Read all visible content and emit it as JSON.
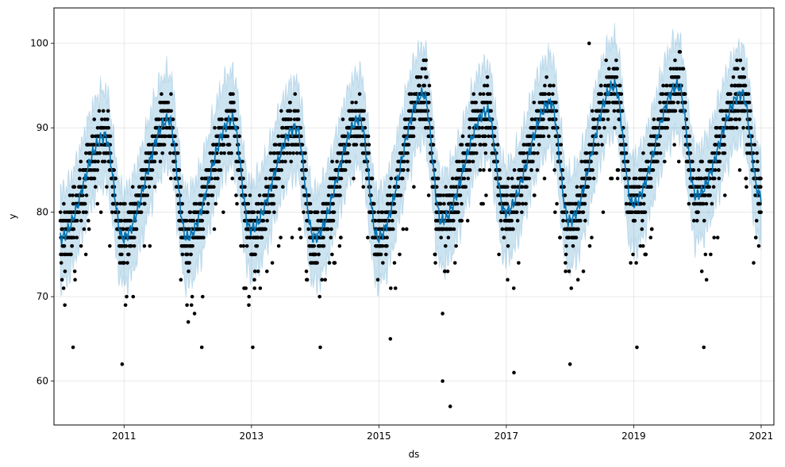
{
  "chart_data": {
    "type": "scatter",
    "title": "",
    "xlabel": "ds",
    "ylabel": "y",
    "xlim": [
      2009.9,
      2021.2
    ],
    "ylim": [
      54.8,
      104.2
    ],
    "grid": true,
    "x_ticks": [
      {
        "value": 2011,
        "label": "2011"
      },
      {
        "value": 2013,
        "label": "2013"
      },
      {
        "value": 2015,
        "label": "2015"
      },
      {
        "value": 2017,
        "label": "2017"
      },
      {
        "value": 2019,
        "label": "2019"
      },
      {
        "value": 2021,
        "label": "2021"
      }
    ],
    "y_ticks": [
      {
        "value": 60,
        "label": "60"
      },
      {
        "value": 70,
        "label": "70"
      },
      {
        "value": 80,
        "label": "80"
      },
      {
        "value": 90,
        "label": "90"
      },
      {
        "value": 100,
        "label": "100"
      }
    ],
    "observed": {
      "color": "#000000",
      "x_range": [
        2010.0,
        2021.0
      ],
      "annual_cycle": [
        {
          "year": 2010,
          "min": 77,
          "max": 89
        },
        {
          "year": 2011,
          "min": 77,
          "max": 91
        },
        {
          "year": 2012,
          "min": 78,
          "max": 91
        },
        {
          "year": 2013,
          "min": 77,
          "max": 90
        },
        {
          "year": 2014,
          "min": 77,
          "max": 91
        },
        {
          "year": 2015,
          "min": 79,
          "max": 94
        },
        {
          "year": 2016,
          "min": 80,
          "max": 92
        },
        {
          "year": 2017,
          "min": 79,
          "max": 93
        },
        {
          "year": 2018,
          "min": 81,
          "max": 95
        },
        {
          "year": 2019,
          "min": 82,
          "max": 95
        },
        {
          "year": 2020,
          "min": 82,
          "max": 94
        }
      ],
      "outliers": [
        {
          "x": 2010.2,
          "y": 64
        },
        {
          "x": 2010.97,
          "y": 62
        },
        {
          "x": 2012.22,
          "y": 64
        },
        {
          "x": 2013.02,
          "y": 64
        },
        {
          "x": 2014.08,
          "y": 64
        },
        {
          "x": 2015.18,
          "y": 65
        },
        {
          "x": 2016.0,
          "y": 60
        },
        {
          "x": 2016.12,
          "y": 57
        },
        {
          "x": 2017.12,
          "y": 61
        },
        {
          "x": 2018.0,
          "y": 62
        },
        {
          "x": 2019.05,
          "y": 64
        },
        {
          "x": 2020.1,
          "y": 64
        },
        {
          "x": 2018.3,
          "y": 100
        }
      ]
    },
    "forecast": {
      "color": "#0072B2",
      "interval_color": "#0072B2",
      "interval_opacity": 0.2,
      "interval_half_width": 5.5
    }
  }
}
